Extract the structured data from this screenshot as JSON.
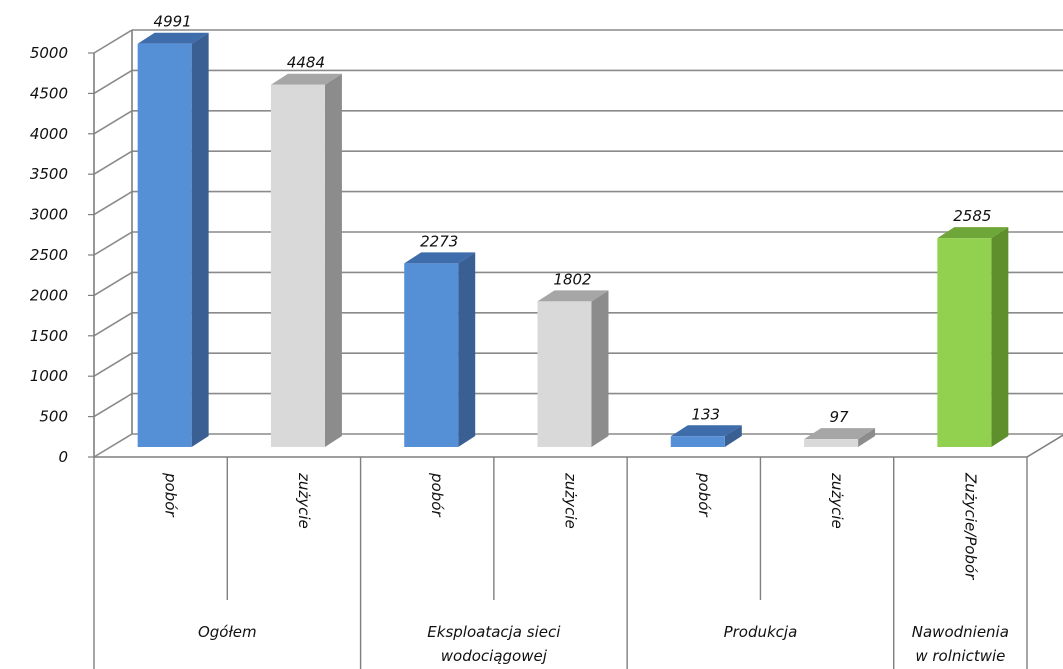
{
  "chart_data": {
    "type": "bar",
    "title": "",
    "xlabel": "",
    "ylabel": "",
    "ylim": [
      0,
      5000
    ],
    "y_ticks": [
      "0",
      "500",
      "1000",
      "1500",
      "2000",
      "2500",
      "3000",
      "3500",
      "4000",
      "4500",
      "5000"
    ],
    "grid": true,
    "three_d": true,
    "bars": [
      {
        "category": "pobór",
        "value": 4991,
        "label": "4991",
        "color": "blue"
      },
      {
        "category": "zużycie",
        "value": 4484,
        "label": "4484",
        "color": "gray"
      },
      {
        "category": "pobór",
        "value": 2273,
        "label": "2273",
        "color": "blue"
      },
      {
        "category": "zużycie",
        "value": 1802,
        "label": "1802",
        "color": "gray"
      },
      {
        "category": "pobór",
        "value": 133,
        "label": "133",
        "color": "blue"
      },
      {
        "category": "zużycie",
        "value": 97,
        "label": "97",
        "color": "gray"
      },
      {
        "category": "Zużycie/Pobór",
        "value": 2585,
        "label": "2585",
        "color": "green"
      }
    ],
    "groups": [
      {
        "lines": [
          "Ogółem"
        ],
        "span": 2
      },
      {
        "lines": [
          "Eksploatacja sieci",
          "wodociągowej"
        ],
        "span": 2
      },
      {
        "lines": [
          "Produkcja"
        ],
        "span": 2
      },
      {
        "lines": [
          "Nawodnienia",
          "w rolnictwie"
        ],
        "span": 1
      }
    ],
    "colors": {
      "blue": {
        "front": "#5590d6",
        "side": "#3a5f93",
        "top": "#3f6cab"
      },
      "gray": {
        "front": "#d9d9d9",
        "side": "#8c8c8c",
        "top": "#a6a6a6"
      },
      "green": {
        "front": "#92d050",
        "side": "#5f8f2c",
        "top": "#6fa63a"
      },
      "grid": "#8a8a8a",
      "axis": "#7f7f7f"
    }
  }
}
